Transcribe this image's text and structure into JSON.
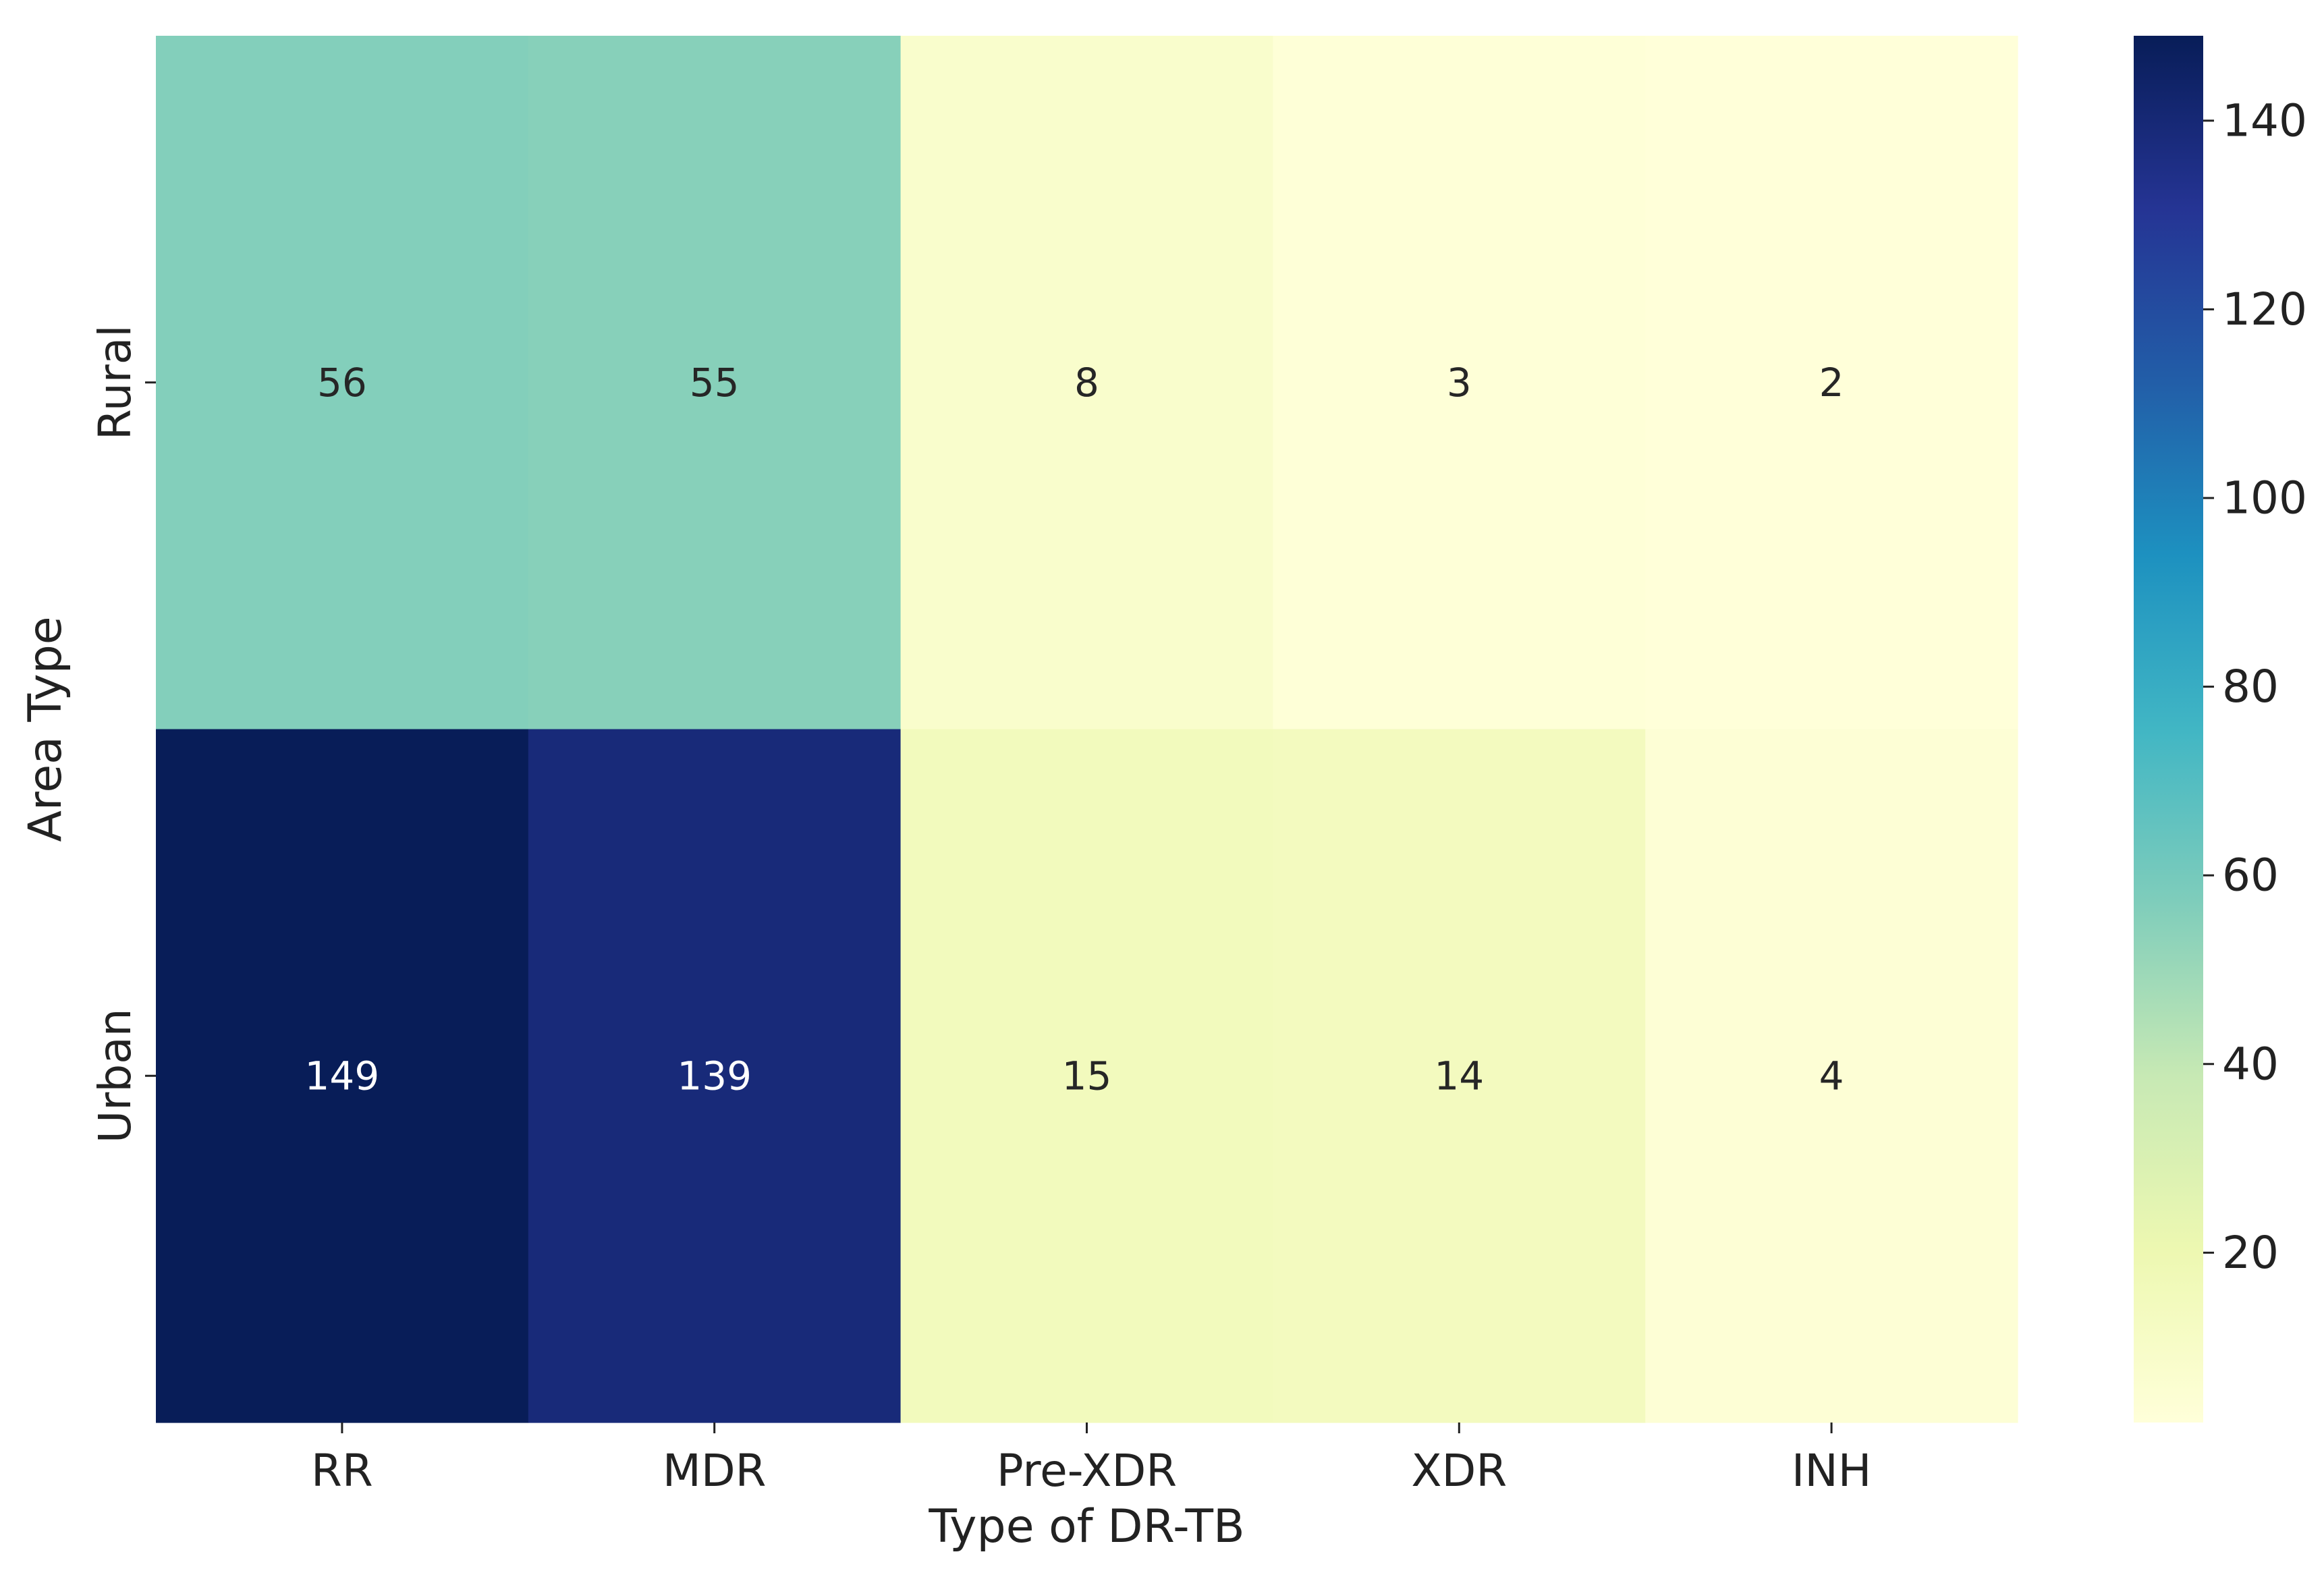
{
  "chart_data": {
    "type": "heatmap",
    "xlabel": "Type of DR-TB",
    "ylabel": "Area Type",
    "x_categories": [
      "RR",
      "MDR",
      "Pre-XDR",
      "XDR",
      "INH"
    ],
    "y_categories": [
      "Rural",
      "Urban"
    ],
    "values": [
      [
        56,
        55,
        8,
        3,
        2
      ],
      [
        149,
        139,
        15,
        14,
        4
      ]
    ],
    "colormap": "YlGnBu",
    "colorbar": {
      "range": [
        2,
        149
      ],
      "ticks": [
        20,
        40,
        60,
        80,
        100,
        120,
        140
      ],
      "tick_labels": [
        "20",
        "40",
        "60",
        "80",
        "100",
        "120",
        "140"
      ]
    },
    "annotations": true,
    "grid": false,
    "legend": "colorbar-right"
  }
}
